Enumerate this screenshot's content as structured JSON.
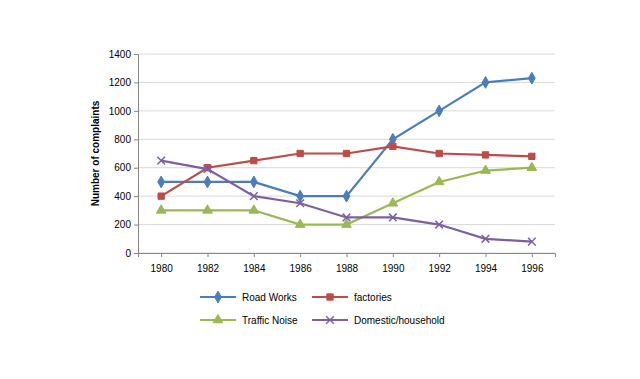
{
  "chart_data": {
    "type": "line",
    "y_label": "Number of complaints",
    "categories": [
      "1980",
      "1982",
      "1984",
      "1986",
      "1988",
      "1990",
      "1992",
      "1994",
      "1996"
    ],
    "series": [
      {
        "name": "Road Works",
        "color": "#4a7ebb",
        "marker": "diamond",
        "values": [
          500,
          500,
          500,
          400,
          400,
          800,
          1000,
          1200,
          1230
        ]
      },
      {
        "name": "factories",
        "color": "#be4b48",
        "marker": "square",
        "values": [
          400,
          600,
          650,
          700,
          700,
          750,
          700,
          690,
          680
        ]
      },
      {
        "name": "Traffic Noise",
        "color": "#98b954",
        "marker": "triangle",
        "values": [
          300,
          300,
          300,
          200,
          200,
          350,
          500,
          580,
          600
        ]
      },
      {
        "name": "Domestic/household",
        "color": "#7d60a0",
        "marker": "x",
        "values": [
          650,
          590,
          400,
          350,
          250,
          250,
          200,
          100,
          80
        ]
      }
    ],
    "ylim": [
      0,
      1400
    ],
    "yticks": [
      0,
      200,
      400,
      600,
      800,
      1000,
      1200,
      1400
    ],
    "grid": true,
    "legend": "bottom"
  }
}
